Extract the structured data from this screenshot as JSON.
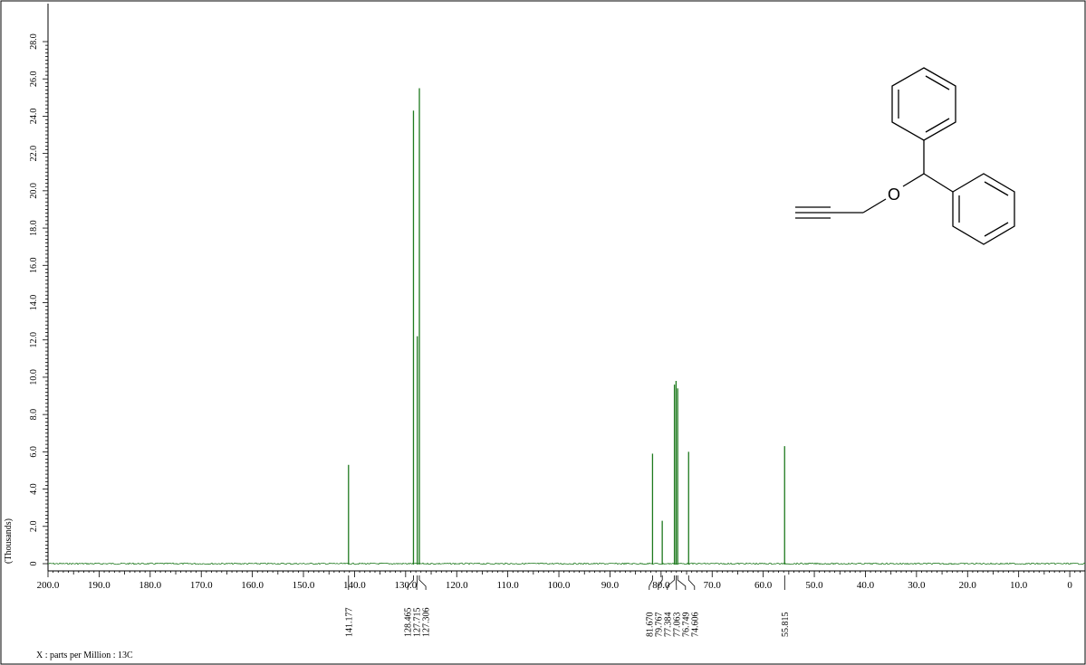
{
  "chart_data": {
    "type": "line",
    "title": "",
    "xlabel": "X : parts per Million : 13C",
    "ylabel": "(Thousands)",
    "x_reversed": true,
    "xlim": [
      200.0,
      -3.0
    ],
    "ylim": [
      -0.8,
      30.0
    ],
    "x_ticks": [
      "200.0",
      "190.0",
      "180.0",
      "170.0",
      "160.0",
      "150.0",
      "140.0",
      "130.0",
      "120.0",
      "110.0",
      "100.0",
      "90.0",
      "80.0",
      "70.0",
      "60.0",
      "50.0",
      "40.0",
      "30.0",
      "20.0",
      "10.0",
      "0"
    ],
    "y_ticks": [
      "0",
      "2.0",
      "4.0",
      "6.0",
      "8.0",
      "10.0",
      "12.0",
      "14.0",
      "16.0",
      "18.0",
      "20.0",
      "22.0",
      "24.0",
      "26.0",
      "28.0"
    ],
    "grid": false,
    "line_color": "#1f7a1f",
    "peaks": [
      {
        "x": 141.177,
        "y": 5.3
      },
      {
        "x": 128.465,
        "y": 24.3
      },
      {
        "x": 127.715,
        "y": 12.2
      },
      {
        "x": 127.306,
        "y": 25.5
      },
      {
        "x": 81.67,
        "y": 5.9
      },
      {
        "x": 79.767,
        "y": 2.3
      },
      {
        "x": 77.384,
        "y": 9.6
      },
      {
        "x": 77.063,
        "y": 9.8
      },
      {
        "x": 76.749,
        "y": 9.4
      },
      {
        "x": 74.606,
        "y": 6.0
      },
      {
        "x": 55.815,
        "y": 6.3
      }
    ],
    "peak_label_groups": [
      [
        "141.177"
      ],
      [
        "128.465",
        "127.715",
        "127.306"
      ],
      [
        "81.670",
        "79.767",
        "77.384",
        "77.063",
        "76.749",
        "74.606"
      ],
      [
        "55.815"
      ]
    ]
  },
  "structure": {
    "oxygen_label": "O",
    "name": "propargyl benzhydryl ether"
  }
}
